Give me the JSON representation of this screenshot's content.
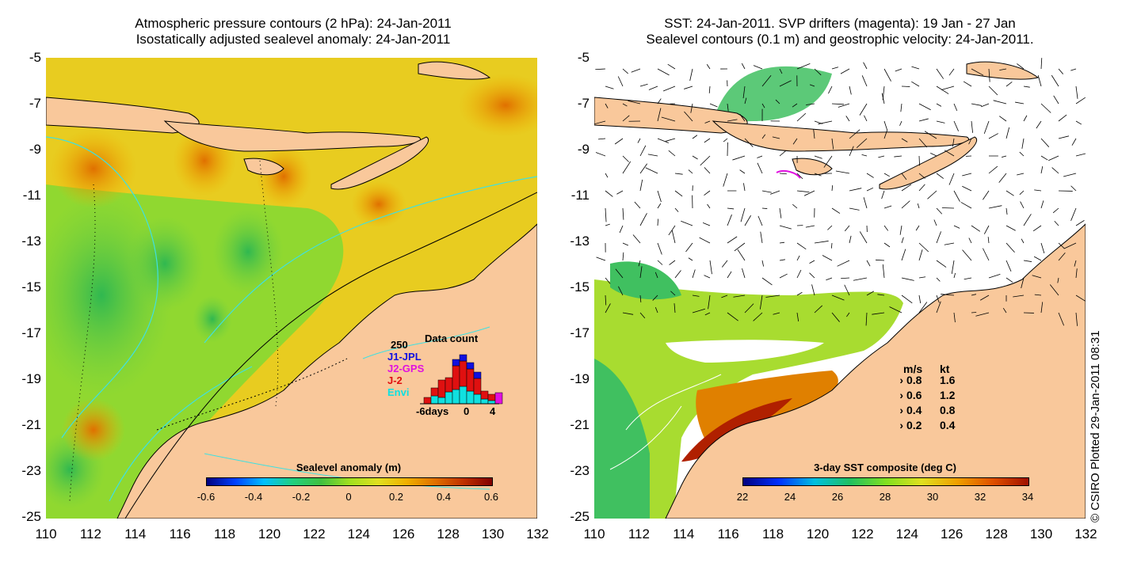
{
  "left_panel": {
    "title_line1": "Atmospheric pressure contours (2 hPa): 24-Jan-2011",
    "title_line2": "Isostatically adjusted sealevel anomaly: 24-Jan-2011",
    "colorbar_label": "Sealevel anomaly (m)",
    "colorbar_ticks": [
      "-0.6",
      "-0.4",
      "-0.2",
      "0",
      "0.2",
      "0.4",
      "0.6"
    ],
    "inset": {
      "title": "Data count",
      "ymax": "250",
      "x_left": "-6days",
      "x_mid": "0",
      "x_right": "4",
      "legend": [
        {
          "label": "J1-JPL",
          "color": "#1010e0"
        },
        {
          "label": "J2-GPS",
          "color": "#e010e0"
        },
        {
          "label": "J-2",
          "color": "#e01010"
        },
        {
          "label": "Envi",
          "color": "#10e0e0"
        }
      ]
    }
  },
  "right_panel": {
    "title_line1": "SST: 24-Jan-2011. SVP drifters (magenta): 19 Jan - 27 Jan",
    "title_line2": "Sealevel contours (0.1 m) and geostrophic velocity: 24-Jan-2011.",
    "colorbar_label": "3-day SST composite (deg C)",
    "colorbar_ticks": [
      "22",
      "24",
      "26",
      "28",
      "30",
      "32",
      "34"
    ],
    "velocity_legend": {
      "header_ms": "m/s",
      "header_kt": "kt",
      "rows": [
        {
          "ms": "0.8",
          "kt": "1.6"
        },
        {
          "ms": "0.6",
          "kt": "1.2"
        },
        {
          "ms": "0.4",
          "kt": "0.8"
        },
        {
          "ms": "0.2",
          "kt": "0.4"
        }
      ]
    }
  },
  "axes": {
    "y_ticks": [
      "-5",
      "-7",
      "-9",
      "-11",
      "-13",
      "-15",
      "-17",
      "-19",
      "-21",
      "-23",
      "-25"
    ],
    "x_ticks": [
      "110",
      "112",
      "114",
      "116",
      "118",
      "120",
      "122",
      "124",
      "126",
      "128",
      "130",
      "132"
    ]
  },
  "credit": "© CSIRO Plotted 29-Jan-2011 08:31",
  "colors": {
    "land": "#f9c89b",
    "contour_cyan": "#40e0e0",
    "anomaly_scale": [
      "#00007f",
      "#0040ff",
      "#00c0ff",
      "#20d080",
      "#40c040",
      "#a0e020",
      "#e0e020",
      "#f0b000",
      "#e07000",
      "#c03000",
      "#800000"
    ],
    "sst_scale": [
      "#000080",
      "#0030ff",
      "#00c0e0",
      "#20c060",
      "#80e020",
      "#e0e020",
      "#f0a000",
      "#e05000",
      "#a01000"
    ]
  }
}
